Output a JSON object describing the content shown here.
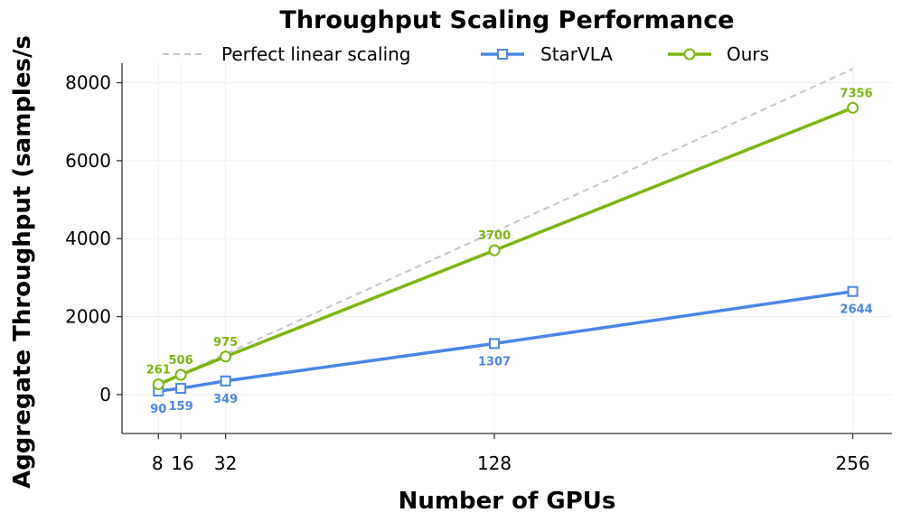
{
  "chart_data": {
    "type": "line",
    "title": "Throughput Scaling Performance",
    "xlabel": "Number of GPUs",
    "ylabel": "Aggregate Throughput (samples/s",
    "x": [
      8,
      16,
      32,
      128,
      256
    ],
    "x_tick_labels": [
      "8",
      "16",
      "32",
      "128",
      "256"
    ],
    "xlim": [
      -5,
      270
    ],
    "ylim": [
      -1000,
      8500
    ],
    "y_ticks": [
      0,
      2000,
      4000,
      6000,
      8000
    ],
    "y_tick_labels": [
      "0",
      "2000",
      "4000",
      "6000",
      "8000"
    ],
    "grid": true,
    "legend_position": "top",
    "series": [
      {
        "name": "Perfect linear scaling",
        "style": "dashed",
        "color": "#c4c4d0",
        "x": [
          8,
          16,
          32,
          128,
          256
        ],
        "values": [
          261,
          522,
          1044,
          4176,
          8352
        ]
      },
      {
        "name": "StarVLA",
        "style": "solid",
        "marker": "square",
        "color": "#4a86e8",
        "x": [
          8,
          16,
          32,
          128,
          256
        ],
        "values": [
          90,
          159,
          349,
          1307,
          2644
        ],
        "data_labels": [
          "90",
          "159",
          "349",
          "1307",
          "2644"
        ]
      },
      {
        "name": "Ours",
        "style": "solid",
        "marker": "circle",
        "color": "#7cb50f",
        "x": [
          8,
          16,
          32,
          128,
          256
        ],
        "values": [
          261,
          506,
          975,
          3700,
          7356
        ],
        "data_labels": [
          "261",
          "506",
          "975",
          "3700",
          "7356"
        ]
      }
    ]
  }
}
